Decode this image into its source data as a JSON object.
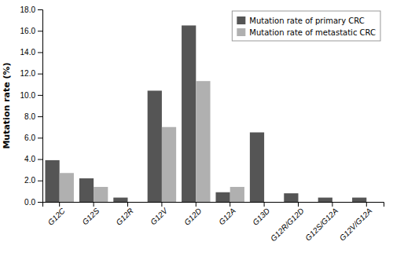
{
  "chart_data": {
    "type": "bar",
    "categories": [
      "G12C",
      "G12S",
      "G12R",
      "G12V",
      "G12D",
      "G12A",
      "G13D",
      "G12R/G12D",
      "G12S/G12A",
      "G12V/G12A"
    ],
    "series": [
      {
        "name": "Mutation rate of primary CRC",
        "color": "#555555",
        "values": [
          3.9,
          2.2,
          0.4,
          10.4,
          16.5,
          0.9,
          6.5,
          0.8,
          0.4,
          0.4
        ]
      },
      {
        "name": "Mutation rate of metastatic CRC",
        "color": "#b0b0b0",
        "values": [
          2.7,
          1.4,
          0.0,
          7.0,
          11.3,
          1.4,
          0.0,
          0.0,
          0.0,
          0.0
        ]
      }
    ],
    "ylabel": "Mutation rate (%)",
    "ylim": [
      0,
      18.0
    ],
    "yticks": [
      {
        "value": 0.0,
        "label": "0.0"
      },
      {
        "value": 2.0,
        "label": "2.0"
      },
      {
        "value": 4.0,
        "label": "4.0"
      },
      {
        "value": 6.0,
        "label": "6.0"
      },
      {
        "value": 8.0,
        "label": "8.0"
      },
      {
        "value": 10.0,
        "label": "10.0"
      },
      {
        "value": 12.0,
        "label": "12.0"
      },
      {
        "value": 14.0,
        "label": "14.0"
      },
      {
        "value": 16.0,
        "label": "16.0"
      },
      {
        "value": 18.0,
        "label": "18.0"
      }
    ],
    "grid": false,
    "legend": "upper right"
  }
}
